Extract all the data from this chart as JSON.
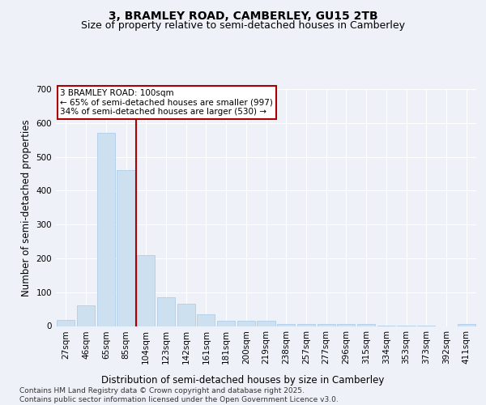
{
  "title": "3, BRAMLEY ROAD, CAMBERLEY, GU15 2TB",
  "subtitle": "Size of property relative to semi-detached houses in Camberley",
  "xlabel": "Distribution of semi-detached houses by size in Camberley",
  "ylabel": "Number of semi-detached properties",
  "footnote": "Contains HM Land Registry data © Crown copyright and database right 2025.\nContains public sector information licensed under the Open Government Licence v3.0.",
  "annotation_title": "3 BRAMLEY ROAD: 100sqm",
  "annotation_line1": "← 65% of semi-detached houses are smaller (997)",
  "annotation_line2": "34% of semi-detached houses are larger (530) →",
  "categories": [
    "27sqm",
    "46sqm",
    "65sqm",
    "85sqm",
    "104sqm",
    "123sqm",
    "142sqm",
    "161sqm",
    "181sqm",
    "200sqm",
    "219sqm",
    "238sqm",
    "257sqm",
    "277sqm",
    "296sqm",
    "315sqm",
    "334sqm",
    "353sqm",
    "373sqm",
    "392sqm",
    "411sqm"
  ],
  "values": [
    17,
    60,
    570,
    460,
    210,
    85,
    65,
    35,
    15,
    15,
    15,
    7,
    7,
    5,
    5,
    7,
    2,
    2,
    2,
    0,
    5
  ],
  "bar_color": "#cce0f0",
  "bar_edge_color": "#a8c8e8",
  "vline_color": "#aa0000",
  "vline_x": 3.5,
  "ylim": [
    0,
    700
  ],
  "yticks": [
    0,
    100,
    200,
    300,
    400,
    500,
    600,
    700
  ],
  "bg_color": "#eef2f8",
  "plot_bg_color": "#eef2f8",
  "grid_color": "#ffffff",
  "title_fontsize": 10,
  "subtitle_fontsize": 9,
  "axis_label_fontsize": 8.5,
  "tick_fontsize": 7.5,
  "annotation_fontsize": 7.5,
  "footnote_fontsize": 6.5
}
